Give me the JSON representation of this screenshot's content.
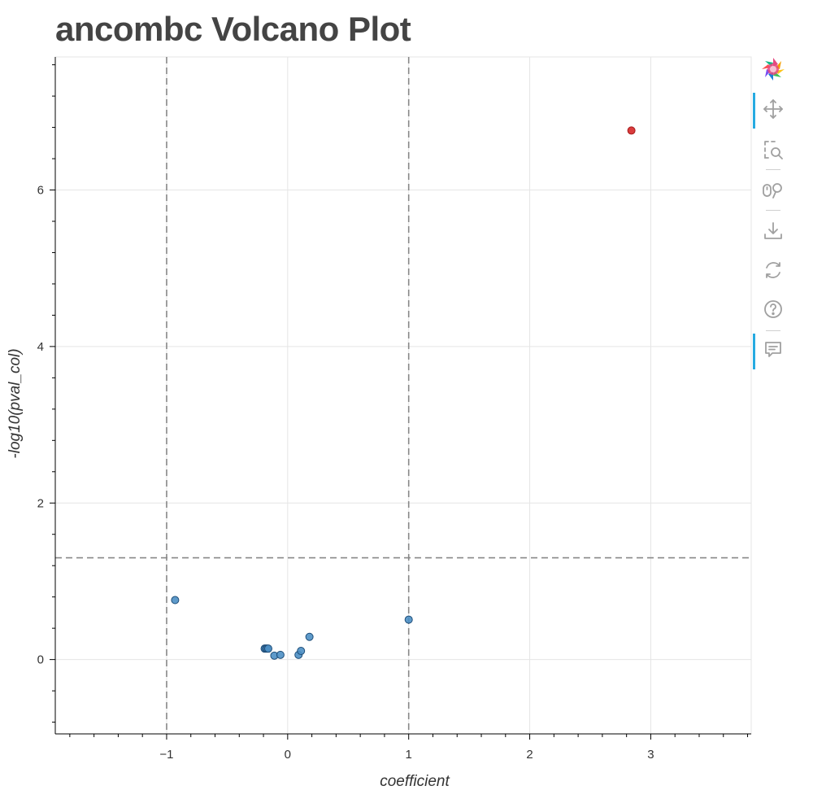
{
  "title": "ancombc Volcano Plot",
  "toolbar": {
    "tools": [
      {
        "name": "bokeh-logo-icon"
      },
      {
        "name": "pan-icon",
        "active": true
      },
      {
        "name": "box-zoom-icon",
        "active": false
      },
      {
        "name": "wheel-zoom-icon",
        "active": false
      },
      {
        "name": "save-icon",
        "active": false
      },
      {
        "name": "reset-icon",
        "active": false
      },
      {
        "name": "help-icon",
        "active": false
      },
      {
        "name": "hover-icon",
        "active": true
      }
    ],
    "accent": "#26aae1",
    "icon_color": "#a0a0a0"
  },
  "chart_data": {
    "type": "scatter",
    "title": "ancombc Volcano Plot",
    "xlabel": "coefficient",
    "ylabel": "-log10(pval_col)",
    "xlim": [
      -1.92,
      3.83
    ],
    "ylim": [
      -0.95,
      7.7
    ],
    "xticks": [
      -1,
      0,
      1,
      2,
      3
    ],
    "yticks": [
      0,
      2,
      4,
      6
    ],
    "xtick_labels": [
      "−1",
      "0",
      "1",
      "2",
      "3"
    ],
    "ytick_labels": [
      "0",
      "2",
      "4",
      "6"
    ],
    "grid": true,
    "threshold_lines": {
      "vertical": [
        -1,
        1
      ],
      "horizontal": [
        1.3
      ]
    },
    "colors": {
      "significant": "#d62728",
      "not_significant": "#4d8fc4",
      "point_edge": "#1f4e79",
      "threshold": "#888888",
      "grid": "#e5e5e5",
      "axis_text": "#333333"
    },
    "points": [
      {
        "x": -0.93,
        "y": 0.76,
        "significant": false
      },
      {
        "x": -0.19,
        "y": 0.14,
        "significant": false
      },
      {
        "x": -0.18,
        "y": 0.14,
        "significant": false
      },
      {
        "x": -0.17,
        "y": 0.14,
        "significant": false
      },
      {
        "x": -0.16,
        "y": 0.14,
        "significant": false
      },
      {
        "x": -0.11,
        "y": 0.05,
        "significant": false
      },
      {
        "x": -0.06,
        "y": 0.06,
        "significant": false
      },
      {
        "x": 0.09,
        "y": 0.06,
        "significant": false
      },
      {
        "x": 0.11,
        "y": 0.11,
        "significant": false
      },
      {
        "x": 0.18,
        "y": 0.29,
        "significant": false
      },
      {
        "x": 1.0,
        "y": 0.51,
        "significant": false
      },
      {
        "x": 2.84,
        "y": 6.76,
        "significant": true
      }
    ]
  }
}
